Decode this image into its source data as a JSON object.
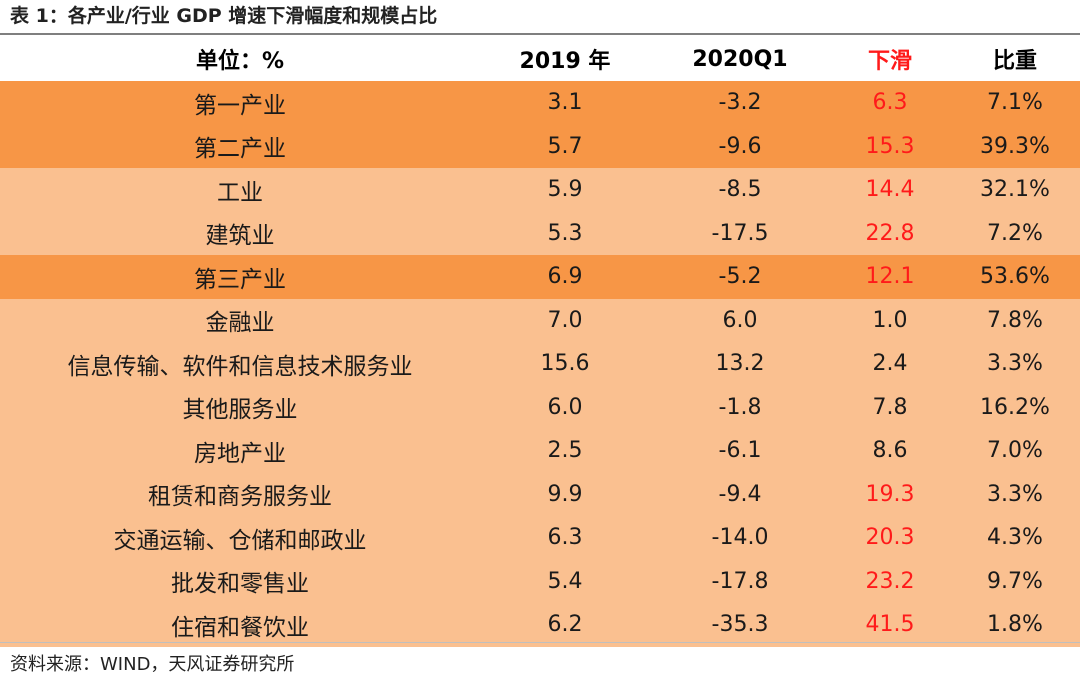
{
  "caption": "表 1：各产业/行业 GDP 增速下滑幅度和规模占比",
  "headers": [
    "单位：%",
    "2019 年",
    "2020Q1",
    "下滑",
    "比重"
  ],
  "rows": [
    {
      "name": "第一产业",
      "y2019": "3.1",
      "q1": "-3.2",
      "drop": "6.3",
      "share": "7.1%",
      "shade": "dark",
      "drop_red": true
    },
    {
      "name": "第二产业",
      "y2019": "5.7",
      "q1": "-9.6",
      "drop": "15.3",
      "share": "39.3%",
      "shade": "dark",
      "drop_red": true
    },
    {
      "name": "工业",
      "y2019": "5.9",
      "q1": "-8.5",
      "drop": "14.4",
      "share": "32.1%",
      "shade": "light",
      "drop_red": true
    },
    {
      "name": "建筑业",
      "y2019": "5.3",
      "q1": "-17.5",
      "drop": "22.8",
      "share": "7.2%",
      "shade": "light",
      "drop_red": true
    },
    {
      "name": "第三产业",
      "y2019": "6.9",
      "q1": "-5.2",
      "drop": "12.1",
      "share": "53.6%",
      "shade": "dark",
      "drop_red": true
    },
    {
      "name": "金融业",
      "y2019": "7.0",
      "q1": "6.0",
      "drop": "1.0",
      "share": "7.8%",
      "shade": "light",
      "drop_red": false
    },
    {
      "name": "信息传输、软件和信息技术服务业",
      "y2019": "15.6",
      "q1": "13.2",
      "drop": "2.4",
      "share": "3.3%",
      "shade": "light",
      "drop_red": false
    },
    {
      "name": "其他服务业",
      "y2019": "6.0",
      "q1": "-1.8",
      "drop": "7.8",
      "share": "16.2%",
      "shade": "light",
      "drop_red": false
    },
    {
      "name": "房地产业",
      "y2019": "2.5",
      "q1": "-6.1",
      "drop": "8.6",
      "share": "7.0%",
      "shade": "light",
      "drop_red": false
    },
    {
      "name": "租赁和商务服务业",
      "y2019": "9.9",
      "q1": "-9.4",
      "drop": "19.3",
      "share": "3.3%",
      "shade": "light",
      "drop_red": true
    },
    {
      "name": "交通运输、仓储和邮政业",
      "y2019": "6.3",
      "q1": "-14.0",
      "drop": "20.3",
      "share": "4.3%",
      "shade": "light",
      "drop_red": true
    },
    {
      "name": "批发和零售业",
      "y2019": "5.4",
      "q1": "-17.8",
      "drop": "23.2",
      "share": "9.7%",
      "shade": "light",
      "drop_red": true
    },
    {
      "name": "住宿和餐饮业",
      "y2019": "6.2",
      "q1": "-35.3",
      "drop": "41.5",
      "share": "1.8%",
      "shade": "light",
      "drop_red": true
    }
  ],
  "source": "资料来源：WIND，天风证券研究所",
  "colors": {
    "dark_row": "#f79646",
    "light_row": "#fac090",
    "highlight_text": "#ff1a1a"
  }
}
